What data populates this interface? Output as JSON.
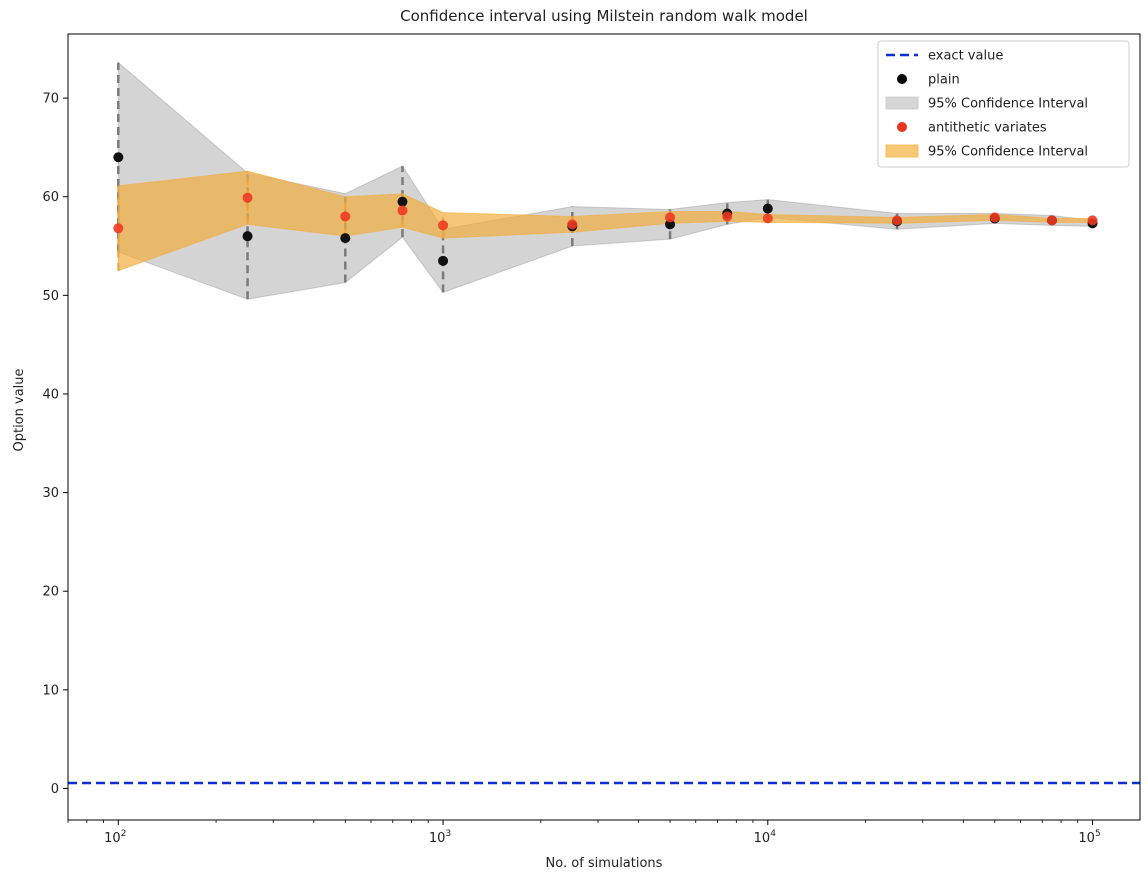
{
  "chart_data": {
    "type": "scatter",
    "title": "Confidence interval using Milstein random walk model",
    "xlabel": "No. of simulations",
    "ylabel": "Option value",
    "xscale": "log",
    "xlim": [
      70,
      140000
    ],
    "ylim": [
      -3.2,
      76.5
    ],
    "xticks": [
      100,
      1000,
      10000,
      100000
    ],
    "xtick_labels": [
      {
        "base": "10",
        "exp": "2"
      },
      {
        "base": "10",
        "exp": "3"
      },
      {
        "base": "10",
        "exp": "4"
      },
      {
        "base": "10",
        "exp": "5"
      }
    ],
    "yticks": [
      0,
      10,
      20,
      30,
      40,
      50,
      60,
      70
    ],
    "grid": false,
    "legend_position": "top-right",
    "x": [
      100,
      250,
      500,
      750,
      1000,
      2500,
      5000,
      7500,
      10000,
      25000,
      50000,
      75000,
      100000
    ],
    "exact_value": 0.55,
    "plain": {
      "values": [
        64.0,
        56.0,
        55.8,
        59.5,
        53.5,
        57.0,
        57.2,
        58.3,
        58.8,
        57.5,
        57.8,
        57.6,
        57.3
      ],
      "lower": [
        54.4,
        49.6,
        51.3,
        55.9,
        50.3,
        55.0,
        55.7,
        57.2,
        57.9,
        56.7,
        57.3,
        57.1,
        57.0
      ],
      "upper": [
        73.6,
        62.4,
        60.3,
        63.1,
        56.7,
        59.0,
        58.7,
        59.4,
        59.7,
        58.3,
        58.3,
        58.1,
        57.6
      ]
    },
    "antithetic": {
      "values": [
        56.8,
        59.9,
        58.0,
        58.6,
        57.1,
        57.2,
        57.9,
        58.0,
        57.8,
        57.6,
        57.9,
        57.6,
        57.6
      ],
      "lower": [
        52.5,
        57.2,
        56.0,
        56.9,
        55.8,
        56.4,
        57.3,
        57.5,
        57.4,
        57.3,
        57.6,
        57.4,
        57.4
      ],
      "upper": [
        61.1,
        62.6,
        60.0,
        60.3,
        58.4,
        58.0,
        58.5,
        58.5,
        58.2,
        57.9,
        58.2,
        57.8,
        57.8
      ]
    },
    "legend": [
      {
        "label": "exact value",
        "kind": "dashed-line",
        "color": "#0c2fd6"
      },
      {
        "label": "plain",
        "kind": "marker",
        "color": "#000000"
      },
      {
        "label": "95% Confidence Interval",
        "kind": "patch",
        "color": "#c8c8c8"
      },
      {
        "label": "antithetic variates",
        "kind": "marker",
        "color": "#e8341c"
      },
      {
        "label": "95% Confidence Interval",
        "kind": "patch",
        "color": "#f5b64a"
      }
    ],
    "colors": {
      "plain_band": "#b8b8b8",
      "plain_band_edge": "#a0a0a0",
      "plain_errbar": "#7a7a7a",
      "antithetic_band": "#f2ae3f",
      "antithetic_errbar": "#f0a23a",
      "exact": "#0c2fd6",
      "plain_marker": "#111111",
      "antithetic_marker": "#ee3a22"
    }
  }
}
